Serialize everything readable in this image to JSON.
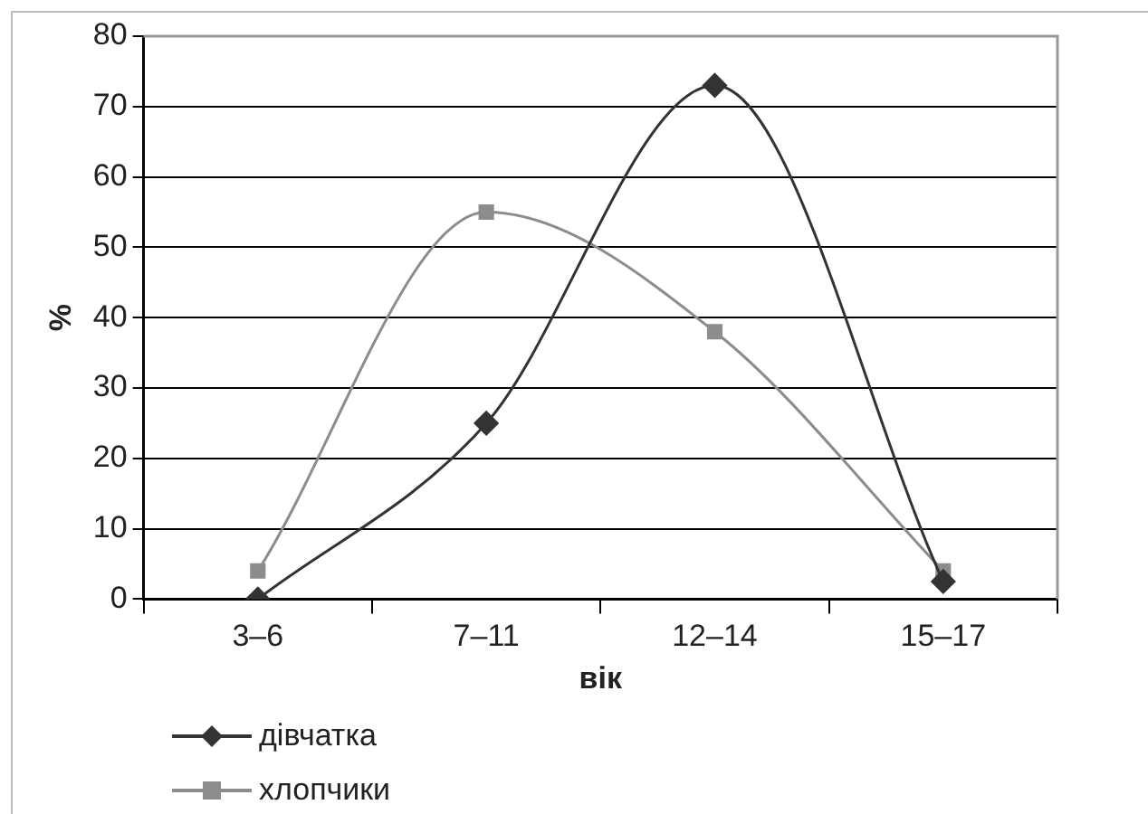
{
  "chart_data": {
    "type": "line",
    "xlabel": "вік",
    "ylabel": "%",
    "categories": [
      "3–6",
      "7–11",
      "12–14",
      "15–17"
    ],
    "series": [
      {
        "name": "дівчатка",
        "color": "#333333",
        "marker": "diamond",
        "values": [
          0,
          25,
          73,
          2.5
        ]
      },
      {
        "name": "хлопчики",
        "color": "#8c8c8c",
        "marker": "square",
        "values": [
          4,
          55,
          38,
          4
        ]
      }
    ],
    "ylim": [
      0,
      80
    ],
    "yticks": [
      0,
      10,
      20,
      30,
      40,
      50,
      60,
      70,
      80
    ],
    "grid": "y",
    "legend": "bottom left"
  }
}
